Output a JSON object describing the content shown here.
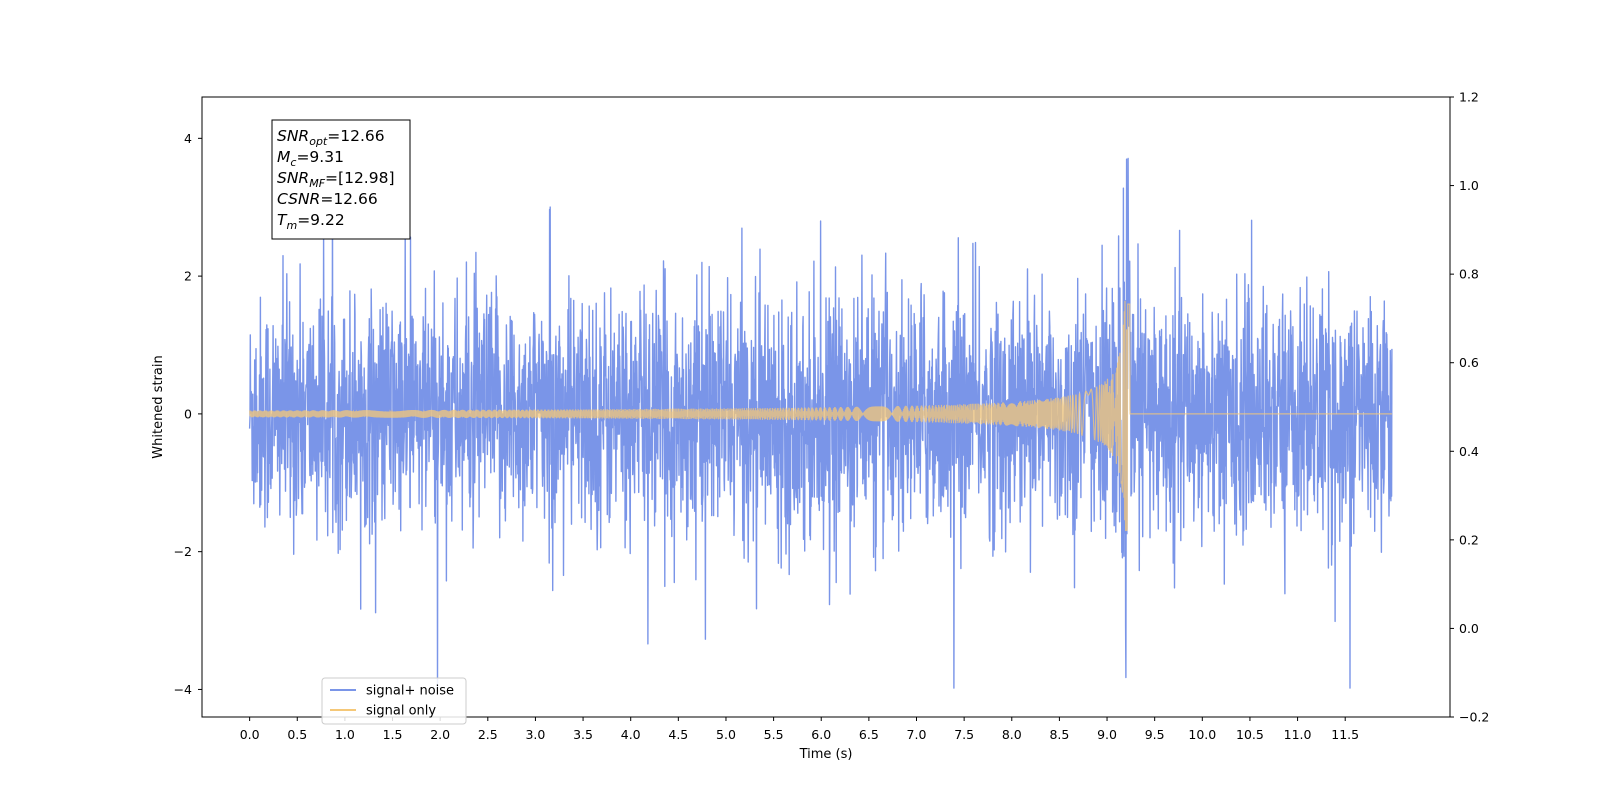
{
  "chart_data": {
    "type": "line",
    "title": "",
    "xlabel": "Time (s)",
    "ylabel": "Whitened strain",
    "xlim": [
      -0.5,
      12.6
    ],
    "ylim": [
      -4.4,
      4.6
    ],
    "y2lim": [
      -0.2,
      1.2
    ],
    "x_ticks": [
      0.0,
      0.5,
      1.0,
      1.5,
      2.0,
      2.5,
      3.0,
      3.5,
      4.0,
      4.5,
      5.0,
      5.5,
      6.0,
      6.5,
      7.0,
      7.5,
      8.0,
      8.5,
      9.0,
      9.5,
      10.0,
      10.5,
      11.0,
      11.5
    ],
    "x_tick_labels": [
      "0.0",
      "0.5",
      "1.0",
      "1.5",
      "2.0",
      "2.5",
      "3.0",
      "3.5",
      "4.0",
      "4.5",
      "5.0",
      "5.5",
      "6.0",
      "6.5",
      "7.0",
      "7.5",
      "8.0",
      "8.5",
      "9.0",
      "9.5",
      "10.0",
      "10.5",
      "11.0",
      "11.5"
    ],
    "y_ticks": [
      -4,
      -2,
      0,
      2,
      4
    ],
    "y_tick_labels": [
      "−4",
      "−2",
      "0",
      "2",
      "4"
    ],
    "y2_ticks": [
      -0.2,
      0.0,
      0.2,
      0.4,
      0.6,
      0.8,
      1.0,
      1.2
    ],
    "y2_tick_labels": [
      "−0.2",
      "0.0",
      "0.2",
      "0.4",
      "0.6",
      "0.8",
      "1.0",
      "1.2"
    ],
    "grid": false,
    "legend_position": "bottom-left",
    "series": [
      {
        "name": "signal+ noise",
        "color": "#7a95e8",
        "description_values": {
          "x_range": [
            0.0,
            11.99
          ],
          "noise_sigma": 0.85,
          "max": 4.2,
          "min": -3.98
        }
      },
      {
        "name": "signal only",
        "color": "#f5c878",
        "description_values": {
          "x_range": [
            0.0,
            11.99
          ],
          "chirp_peak_time": 9.22,
          "chirp_peak_amplitude": 1.7,
          "early_amplitude": 0.05
        }
      }
    ],
    "annotation": {
      "lines": [
        {
          "name": "SNR",
          "sub": "opt",
          "value": "=12.66"
        },
        {
          "name": "M",
          "sub": "c",
          "value": "=9.31"
        },
        {
          "name": "SNR",
          "sub": "MF",
          "value": "=[12.98]"
        },
        {
          "name": "CSNR",
          "sub": "",
          "value": "=12.66"
        },
        {
          "name": "T",
          "sub": "m",
          "value": "=9.22"
        }
      ]
    },
    "legend": [
      "signal+ noise",
      "signal only"
    ]
  }
}
